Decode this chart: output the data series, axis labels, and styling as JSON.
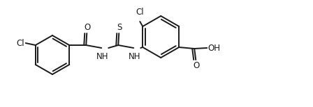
{
  "bg_color": "#ffffff",
  "line_color": "#1a1a1a",
  "line_width": 1.4,
  "font_size": 8.5,
  "figsize": [
    4.48,
    1.54
  ],
  "dpi": 100,
  "xlim": [
    0,
    448
  ],
  "ylim": [
    0,
    154
  ]
}
